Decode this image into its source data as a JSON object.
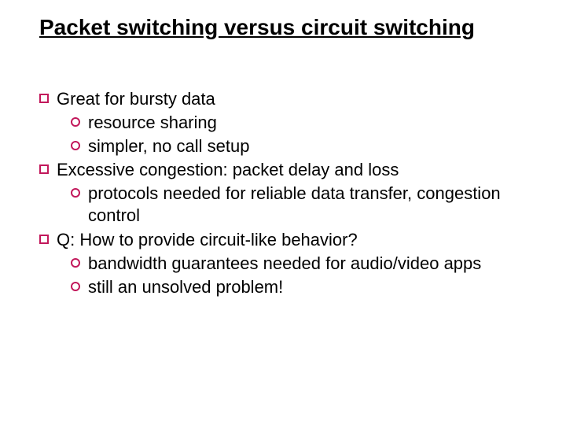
{
  "colors": {
    "background": "#ffffff",
    "text": "#000000",
    "bullet_border": "#c2185b"
  },
  "typography": {
    "font_family": "Comic Sans MS",
    "title_fontsize": 28,
    "body_fontsize": 22
  },
  "title": "Packet switching versus circuit switching",
  "bullets": {
    "b1": "Great for bursty data",
    "b1a": "resource sharing",
    "b1b": "simpler, no call setup",
    "b2": "Excessive congestion: packet delay and loss",
    "b2a": "protocols needed for reliable data transfer, congestion control",
    "b3": "Q: How to provide circuit-like behavior?",
    "b3a": "bandwidth guarantees needed for audio/video apps",
    "b3b": "still an unsolved problem!"
  }
}
